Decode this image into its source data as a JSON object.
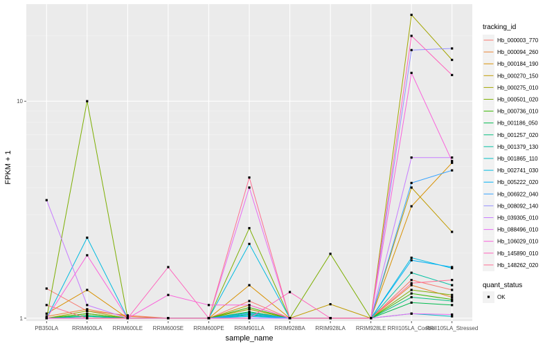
{
  "chart_data": {
    "type": "line",
    "xlabel": "sample_name",
    "ylabel": "FPKM + 1",
    "y_scale": "log10",
    "ylim": [
      0.97,
      28
    ],
    "y_ticks": [
      {
        "value": 1,
        "label": "1"
      },
      {
        "value": 10,
        "label": "10"
      }
    ],
    "categories": [
      "PB350LA",
      "RRIM600LA",
      "RRIM600LE",
      "RRIM600SE",
      "RRIM600PE",
      "RRIM901LA",
      "RRIM928BA",
      "RRIM928LA",
      "RRIM928LE",
      "RRII105LA_Control",
      "RRII105LA_Stressed"
    ],
    "grid": true,
    "background_color": "#ebebeb",
    "legend": {
      "title": "tracking_id",
      "position": "right",
      "entries": [
        {
          "name": "Hb_000003_770",
          "color": "#F8766D"
        },
        {
          "name": "Hb_000094_260",
          "color": "#EA8331"
        },
        {
          "name": "Hb_000184_190",
          "color": "#D89000"
        },
        {
          "name": "Hb_000270_150",
          "color": "#C09B00"
        },
        {
          "name": "Hb_000275_010",
          "color": "#A3A500"
        },
        {
          "name": "Hb_000501_020",
          "color": "#7CAE00"
        },
        {
          "name": "Hb_000736_010",
          "color": "#39B600"
        },
        {
          "name": "Hb_001186_050",
          "color": "#00BB4E"
        },
        {
          "name": "Hb_001257_020",
          "color": "#00BF7D"
        },
        {
          "name": "Hb_001379_130",
          "color": "#00C1A3"
        },
        {
          "name": "Hb_001865_110",
          "color": "#00BFC4"
        },
        {
          "name": "Hb_002741_030",
          "color": "#00BAE0"
        },
        {
          "name": "Hb_005222_020",
          "color": "#00B0F6"
        },
        {
          "name": "Hb_006922_040",
          "color": "#35A2FF"
        },
        {
          "name": "Hb_008092_140",
          "color": "#9590FF"
        },
        {
          "name": "Hb_039305_010",
          "color": "#C77CFF"
        },
        {
          "name": "Hb_088496_010",
          "color": "#E76BF3"
        },
        {
          "name": "Hb_106029_010",
          "color": "#FA62DB"
        },
        {
          "name": "Hb_145890_010",
          "color": "#FF62BC"
        },
        {
          "name": "Hb_148262_020",
          "color": "#FF6C91"
        }
      ]
    },
    "shape_legend": {
      "title": "quant_status",
      "entries": [
        {
          "name": "OK",
          "shape": "square",
          "color": "#000000"
        }
      ]
    },
    "series": [
      {
        "name": "Hb_000003_770",
        "color": "#F8766D",
        "values": [
          1.37,
          1.08,
          1.03,
          1.0,
          1.0,
          1.2,
          1.0,
          1.0,
          1.0,
          1.5,
          1.35
        ]
      },
      {
        "name": "Hb_000094_260",
        "color": "#EA8331",
        "values": [
          1.02,
          1.1,
          1.02,
          1.0,
          1.0,
          1.1,
          1.0,
          1.0,
          1.0,
          1.42,
          1.25
        ]
      },
      {
        "name": "Hb_000184_190",
        "color": "#D89000",
        "values": [
          1.05,
          1.35,
          1.0,
          1.0,
          1.0,
          1.42,
          1.0,
          1.0,
          1.0,
          3.28,
          5.2
        ]
      },
      {
        "name": "Hb_000270_150",
        "color": "#C09B00",
        "values": [
          1.0,
          1.05,
          1.0,
          1.0,
          1.0,
          1.15,
          1.0,
          1.16,
          1.0,
          4.0,
          2.5
        ]
      },
      {
        "name": "Hb_000275_010",
        "color": "#A3A500",
        "values": [
          1.0,
          1.08,
          1.0,
          1.0,
          1.0,
          1.1,
          1.0,
          1.0,
          1.0,
          25.0,
          15.5
        ]
      },
      {
        "name": "Hb_000501_020",
        "color": "#7CAE00",
        "values": [
          1.0,
          10.0,
          1.0,
          1.0,
          1.0,
          2.6,
          1.0,
          1.98,
          1.0,
          1.35,
          1.28
        ]
      },
      {
        "name": "Hb_000736_010",
        "color": "#39B600",
        "values": [
          1.0,
          1.05,
          1.0,
          1.0,
          1.0,
          1.12,
          1.0,
          1.0,
          1.0,
          1.3,
          1.22
        ]
      },
      {
        "name": "Hb_001186_050",
        "color": "#00BB4E",
        "values": [
          1.0,
          1.03,
          1.0,
          1.0,
          1.0,
          1.07,
          1.0,
          1.0,
          1.0,
          1.18,
          1.15
        ]
      },
      {
        "name": "Hb_001257_020",
        "color": "#00BF7D",
        "values": [
          1.0,
          1.02,
          1.0,
          1.0,
          1.0,
          1.04,
          1.0,
          1.0,
          1.0,
          1.25,
          1.2
        ]
      },
      {
        "name": "Hb_001379_130",
        "color": "#00C1A3",
        "values": [
          1.0,
          1.02,
          1.0,
          1.0,
          1.0,
          1.06,
          1.0,
          1.0,
          1.0,
          1.62,
          1.42
        ]
      },
      {
        "name": "Hb_001865_110",
        "color": "#00BFC4",
        "values": [
          1.0,
          1.0,
          1.0,
          1.0,
          1.0,
          1.03,
          1.0,
          1.0,
          1.0,
          1.05,
          1.02
        ]
      },
      {
        "name": "Hb_002741_030",
        "color": "#00BAE0",
        "values": [
          1.0,
          2.35,
          1.0,
          1.0,
          1.0,
          2.2,
          1.0,
          1.0,
          1.0,
          1.9,
          1.7
        ]
      },
      {
        "name": "Hb_005222_020",
        "color": "#00B0F6",
        "values": [
          1.0,
          1.0,
          1.0,
          1.0,
          1.0,
          1.02,
          1.0,
          1.0,
          1.0,
          1.85,
          1.72
        ]
      },
      {
        "name": "Hb_006922_040",
        "color": "#35A2FF",
        "values": [
          1.0,
          1.0,
          1.0,
          1.0,
          1.0,
          1.05,
          1.0,
          1.0,
          1.0,
          4.2,
          4.8
        ]
      },
      {
        "name": "Hb_008092_140",
        "color": "#9590FF",
        "values": [
          1.0,
          1.0,
          1.0,
          1.0,
          1.0,
          1.0,
          1.0,
          1.0,
          1.0,
          17.2,
          17.5
        ]
      },
      {
        "name": "Hb_039305_010",
        "color": "#C77CFF",
        "values": [
          3.5,
          1.15,
          1.0,
          1.0,
          1.0,
          1.0,
          1.0,
          1.0,
          1.0,
          5.5,
          5.5
        ]
      },
      {
        "name": "Hb_088496_010",
        "color": "#E76BF3",
        "values": [
          1.0,
          1.0,
          1.0,
          1.0,
          1.0,
          4.0,
          1.0,
          1.0,
          1.0,
          1.05,
          1.04
        ]
      },
      {
        "name": "Hb_106029_010",
        "color": "#FA62DB",
        "values": [
          1.0,
          1.95,
          1.0,
          1.28,
          1.15,
          1.15,
          1.0,
          1.0,
          1.0,
          13.5,
          5.3
        ]
      },
      {
        "name": "Hb_145890_010",
        "color": "#FF62BC",
        "values": [
          1.0,
          1.0,
          1.0,
          1.72,
          1.0,
          1.0,
          1.32,
          1.0,
          1.0,
          20.0,
          13.2
        ]
      },
      {
        "name": "Hb_148262_020",
        "color": "#FF6C91",
        "values": [
          1.15,
          1.0,
          1.0,
          1.0,
          1.0,
          4.45,
          1.0,
          1.0,
          1.0,
          1.45,
          1.5
        ]
      }
    ]
  }
}
